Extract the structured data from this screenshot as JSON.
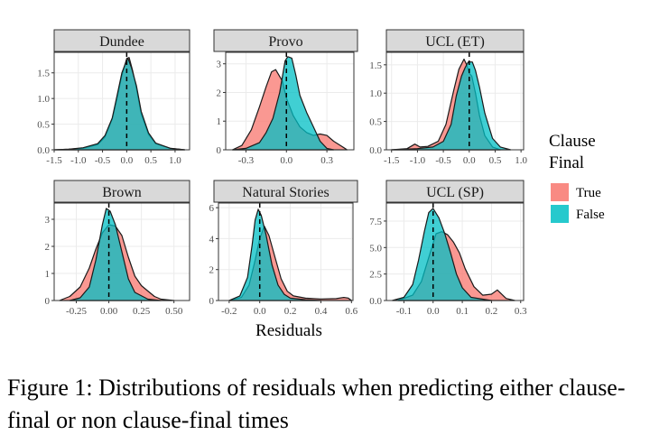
{
  "caption": "Figure 1: Distributions of residuals when predicting either clause-final or non clause-final times",
  "chart_data": {
    "type": "area",
    "xlabel": "Residuals",
    "legend": {
      "title": "Clause Final",
      "position": "right"
    },
    "grid": true,
    "series_colors": {
      "True": "#f8766d",
      "False": "#00bfc4"
    },
    "panels": [
      {
        "name": "Dundee",
        "xlim": [
          -1.5,
          1.3
        ],
        "ylim": [
          0,
          1.9
        ],
        "xticks": [
          -1.5,
          -1.0,
          -0.5,
          0.0,
          0.5,
          1.0
        ],
        "xtick_labels": [
          "-1.5",
          "-1.0",
          "-0.5",
          "0.0",
          "0.5",
          "1.0"
        ],
        "yticks": [
          0.0,
          0.5,
          1.0,
          1.5
        ],
        "ytick_labels": [
          "0.0",
          "0.5",
          "1.0",
          "1.5"
        ],
        "series": [
          {
            "name": "True",
            "x": [
              -1.5,
              -1.2,
              -0.9,
              -0.6,
              -0.45,
              -0.3,
              -0.2,
              -0.1,
              0.0,
              0.05,
              0.12,
              0.2,
              0.3,
              0.45,
              0.6,
              0.9,
              1.2
            ],
            "y": [
              0,
              0.01,
              0.03,
              0.1,
              0.25,
              0.6,
              1.0,
              1.45,
              1.78,
              1.8,
              1.55,
              1.2,
              0.7,
              0.3,
              0.12,
              0.03,
              0
            ]
          },
          {
            "name": "False",
            "x": [
              -1.5,
              -1.2,
              -0.9,
              -0.6,
              -0.45,
              -0.3,
              -0.2,
              -0.1,
              0.0,
              0.03,
              0.1,
              0.2,
              0.3,
              0.45,
              0.6,
              0.9,
              1.2
            ],
            "y": [
              0,
              0.01,
              0.04,
              0.12,
              0.28,
              0.62,
              1.05,
              1.5,
              1.75,
              1.77,
              1.6,
              1.25,
              0.75,
              0.33,
              0.13,
              0.03,
              0
            ]
          }
        ]
      },
      {
        "name": "Provo",
        "xlim": [
          -0.45,
          0.5
        ],
        "ylim": [
          0,
          3.4
        ],
        "xticks": [
          -0.3,
          0.0,
          0.3
        ],
        "xtick_labels": [
          "-0.3",
          "0.0",
          "0.3"
        ],
        "yticks": [
          0,
          1,
          2,
          3
        ],
        "ytick_labels": [
          "0",
          "1",
          "2",
          "3"
        ],
        "series": [
          {
            "name": "True",
            "x": [
              -0.4,
              -0.33,
              -0.26,
              -0.2,
              -0.15,
              -0.11,
              -0.08,
              -0.03,
              0.0,
              0.05,
              0.1,
              0.15,
              0.2,
              0.25,
              0.3,
              0.35,
              0.4,
              0.45
            ],
            "y": [
              0,
              0.15,
              0.7,
              1.5,
              2.2,
              2.72,
              2.8,
              2.4,
              1.8,
              1.2,
              0.8,
              0.6,
              0.5,
              0.55,
              0.5,
              0.3,
              0.15,
              0
            ]
          },
          {
            "name": "False",
            "x": [
              -0.4,
              -0.3,
              -0.2,
              -0.15,
              -0.1,
              -0.05,
              -0.01,
              0.01,
              0.04,
              0.07,
              0.1,
              0.15,
              0.2,
              0.25,
              0.3,
              0.35
            ],
            "y": [
              0,
              0.05,
              0.25,
              0.6,
              1.1,
              2.0,
              3.1,
              3.25,
              3.2,
              2.6,
              1.9,
              1.3,
              0.8,
              0.3,
              0.05,
              0
            ]
          }
        ]
      },
      {
        "name": "UCL (ET)",
        "xlim": [
          -1.6,
          1.05
        ],
        "ylim": [
          0,
          1.72
        ],
        "xticks": [
          -1.5,
          -1.0,
          -0.5,
          0.0,
          0.5,
          1.0
        ],
        "xtick_labels": [
          "-1.5",
          "-1.0",
          "-0.5",
          "0.0",
          "0.5",
          "1.0"
        ],
        "yticks": [
          0.0,
          0.5,
          1.0,
          1.5
        ],
        "ytick_labels": [
          "0.0",
          "0.5",
          "1.0",
          "1.5"
        ],
        "series": [
          {
            "name": "True",
            "x": [
              -1.5,
              -1.2,
              -1.05,
              -0.95,
              -0.8,
              -0.6,
              -0.45,
              -0.3,
              -0.2,
              -0.1,
              -0.05,
              0.0,
              0.05,
              0.12,
              0.2,
              0.3,
              0.45,
              0.6
            ],
            "y": [
              0,
              0.02,
              0.1,
              0.05,
              0.06,
              0.15,
              0.45,
              1.05,
              1.42,
              1.6,
              1.5,
              1.35,
              1.3,
              1.0,
              0.6,
              0.25,
              0.05,
              0
            ]
          },
          {
            "name": "False",
            "x": [
              -1.5,
              -1.0,
              -0.7,
              -0.5,
              -0.35,
              -0.25,
              -0.15,
              -0.08,
              -0.02,
              0.02,
              0.06,
              0.12,
              0.2,
              0.3,
              0.45,
              0.6,
              0.8
            ],
            "y": [
              0,
              0.02,
              0.05,
              0.15,
              0.45,
              0.95,
              1.3,
              1.45,
              1.55,
              1.55,
              1.55,
              1.4,
              1.1,
              0.65,
              0.2,
              0.05,
              0
            ]
          }
        ]
      },
      {
        "name": "Brown",
        "xlim": [
          -0.42,
          0.62
        ],
        "ylim": [
          0,
          3.6
        ],
        "xticks": [
          -0.25,
          0.0,
          0.25,
          0.5
        ],
        "xtick_labels": [
          "-0.25",
          "0.00",
          "0.25",
          "0.50"
        ],
        "yticks": [
          0,
          1,
          2,
          3
        ],
        "ytick_labels": [
          "0",
          "1",
          "2",
          "3"
        ],
        "series": [
          {
            "name": "True",
            "x": [
              -0.38,
              -0.3,
              -0.22,
              -0.15,
              -0.1,
              -0.05,
              0.0,
              0.05,
              0.1,
              0.15,
              0.2,
              0.25,
              0.3,
              0.35,
              0.4,
              0.5
            ],
            "y": [
              0,
              0.15,
              0.5,
              1.2,
              1.9,
              2.5,
              2.8,
              2.75,
              2.4,
              1.6,
              0.9,
              0.55,
              0.35,
              0.15,
              0.05,
              0
            ]
          },
          {
            "name": "False",
            "x": [
              -0.3,
              -0.22,
              -0.15,
              -0.1,
              -0.05,
              -0.02,
              0.01,
              0.05,
              0.1,
              0.15,
              0.2,
              0.3,
              0.4
            ],
            "y": [
              0,
              0.1,
              0.5,
              1.5,
              2.8,
              3.4,
              3.3,
              2.8,
              1.8,
              0.8,
              0.3,
              0.05,
              0
            ]
          }
        ]
      },
      {
        "name": "Natural Stories",
        "xlim": [
          -0.27,
          0.61
        ],
        "ylim": [
          0,
          6.3
        ],
        "xticks": [
          -0.2,
          0.0,
          0.2,
          0.4,
          0.6
        ],
        "xtick_labels": [
          "-0.2",
          "0.0",
          "0.2",
          "0.4",
          "0.6"
        ],
        "yticks": [
          0,
          2,
          4,
          6
        ],
        "ytick_labels": [
          "0",
          "2",
          "4",
          "6"
        ],
        "series": [
          {
            "name": "True",
            "x": [
              -0.2,
              -0.12,
              -0.07,
              -0.03,
              0.0,
              0.03,
              0.06,
              0.1,
              0.14,
              0.18,
              0.22,
              0.3,
              0.4,
              0.5,
              0.55,
              0.58,
              0.6
            ],
            "y": [
              0,
              0.2,
              1.0,
              2.6,
              4.0,
              4.8,
              4.2,
              2.8,
              1.4,
              0.6,
              0.3,
              0.15,
              0.1,
              0.12,
              0.2,
              0.15,
              0
            ]
          },
          {
            "name": "False",
            "x": [
              -0.2,
              -0.13,
              -0.08,
              -0.05,
              -0.03,
              -0.01,
              0.01,
              0.04,
              0.08,
              0.12,
              0.16,
              0.2,
              0.3,
              0.4
            ],
            "y": [
              0,
              0.3,
              1.5,
              3.6,
              5.2,
              5.9,
              5.5,
              4.3,
              2.3,
              1.0,
              0.4,
              0.15,
              0.05,
              0
            ]
          }
        ]
      },
      {
        "name": "UCL (SP)",
        "xlim": [
          -0.16,
          0.31
        ],
        "ylim": [
          0,
          9.2
        ],
        "xticks": [
          -0.1,
          0.0,
          0.1,
          0.2,
          0.3
        ],
        "xtick_labels": [
          "-0.1",
          "0.0",
          "0.1",
          "0.2",
          "0.3"
        ],
        "yticks": [
          0.0,
          2.5,
          5.0,
          7.5
        ],
        "ytick_labels": [
          "0.0",
          "2.5",
          "5.0",
          "7.5"
        ],
        "series": [
          {
            "name": "True",
            "x": [
              -0.12,
              -0.07,
              -0.04,
              -0.01,
              0.01,
              0.03,
              0.05,
              0.07,
              0.09,
              0.11,
              0.14,
              0.17,
              0.2,
              0.22,
              0.25,
              0.28
            ],
            "y": [
              0,
              0.5,
              1.8,
              4.5,
              6.3,
              6.5,
              6.2,
              5.5,
              4.5,
              3.0,
              1.3,
              0.5,
              0.6,
              1.0,
              0.2,
              0
            ]
          },
          {
            "name": "False",
            "x": [
              -0.14,
              -0.1,
              -0.07,
              -0.05,
              -0.03,
              -0.015,
              0.0,
              0.02,
              0.04,
              0.06,
              0.08,
              0.1,
              0.13,
              0.2
            ],
            "y": [
              0,
              0.3,
              1.5,
              3.8,
              6.5,
              8.3,
              8.7,
              7.8,
              6.3,
              4.5,
              2.5,
              1.2,
              0.3,
              0
            ]
          }
        ]
      }
    ]
  }
}
